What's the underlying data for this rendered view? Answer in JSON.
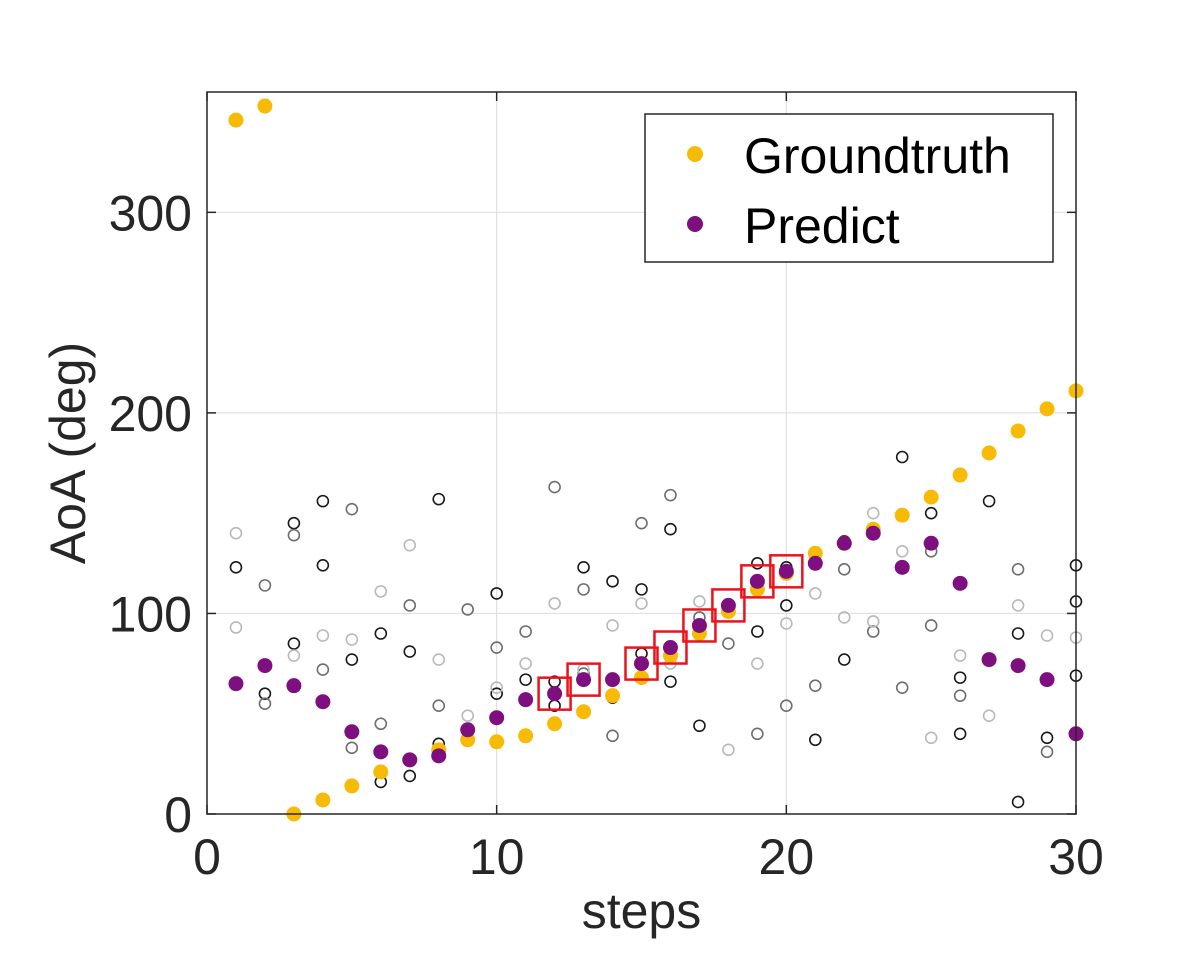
{
  "chart_data": {
    "type": "scatter",
    "title": "",
    "xlabel": "steps",
    "ylabel": "AoA (deg)",
    "xlim": [
      0,
      30
    ],
    "ylim": [
      0,
      360
    ],
    "xticks": [
      0,
      10,
      20,
      30
    ],
    "yticks": [
      0,
      100,
      200,
      300
    ],
    "xtick_labels": [
      "0",
      "10",
      "20",
      "30"
    ],
    "ytick_labels": [
      "0",
      "100",
      "200",
      "300"
    ],
    "grid": true,
    "legend_position": "top-right",
    "colors": {
      "groundtruth": "#f7bb06",
      "predict": "#7e0f7e",
      "candidate_dark": "#1a1a1a",
      "candidate_mid": "#6e6e6e",
      "candidate_light": "#b9b9b9",
      "highlight_box": "#e8141c",
      "grid": "#e0e0e0",
      "axis": "#262626"
    },
    "series": [
      {
        "name": "Groundtruth",
        "marker": "filled-circle",
        "x": [
          1,
          2,
          3,
          4,
          5,
          6,
          7,
          8,
          9,
          10,
          11,
          12,
          13,
          14,
          15,
          16,
          17,
          18,
          19,
          20,
          21,
          22,
          23,
          24,
          25,
          26,
          27,
          28,
          29,
          30
        ],
        "y": [
          346,
          353,
          0,
          7,
          14,
          21,
          27,
          32,
          37,
          36,
          39,
          45,
          51,
          59,
          68,
          79,
          90,
          101,
          112,
          120,
          130,
          135,
          142,
          149,
          158,
          169,
          180,
          191,
          202,
          211
        ]
      },
      {
        "name": "Predict",
        "marker": "filled-circle",
        "x": [
          1,
          2,
          3,
          4,
          5,
          6,
          7,
          8,
          9,
          10,
          11,
          12,
          13,
          14,
          15,
          16,
          17,
          18,
          19,
          20,
          21,
          22,
          23,
          24,
          25,
          26,
          27,
          28,
          29,
          30
        ],
        "y": [
          65,
          74,
          64,
          56,
          41,
          31,
          27,
          29,
          42,
          48,
          57,
          60,
          67,
          67,
          75,
          83,
          94,
          104,
          116,
          121,
          125,
          135,
          140,
          123,
          135,
          115,
          77,
          74,
          67,
          40
        ]
      }
    ],
    "candidates": [
      {
        "shade": "dark",
        "points": [
          [
            1,
            123
          ],
          [
            2,
            60
          ],
          [
            3,
            85
          ],
          [
            3,
            145
          ],
          [
            4,
            124
          ],
          [
            4,
            156
          ],
          [
            5,
            77
          ],
          [
            6,
            16
          ],
          [
            6,
            90
          ],
          [
            7,
            19
          ],
          [
            7,
            81
          ],
          [
            8,
            35
          ],
          [
            8,
            157
          ],
          [
            10,
            60
          ],
          [
            10,
            110
          ],
          [
            11,
            67
          ],
          [
            11,
            39
          ],
          [
            12,
            66
          ],
          [
            12,
            54
          ],
          [
            13,
            67
          ],
          [
            13,
            123
          ],
          [
            14,
            58
          ],
          [
            14,
            116
          ],
          [
            15,
            80
          ],
          [
            15,
            112
          ],
          [
            16,
            66
          ],
          [
            16,
            142
          ],
          [
            17,
            44
          ],
          [
            17,
            93
          ],
          [
            18,
            102
          ],
          [
            19,
            125
          ],
          [
            19,
            91
          ],
          [
            20,
            104
          ],
          [
            20,
            123
          ],
          [
            21,
            129
          ],
          [
            21,
            37
          ],
          [
            22,
            77
          ],
          [
            22,
            136
          ],
          [
            23,
            141
          ],
          [
            24,
            178
          ],
          [
            25,
            150
          ],
          [
            26,
            40
          ],
          [
            26,
            68
          ],
          [
            27,
            156
          ],
          [
            27,
            77
          ],
          [
            28,
            90
          ],
          [
            28,
            6
          ],
          [
            29,
            38
          ],
          [
            30,
            106
          ],
          [
            30,
            69
          ],
          [
            30,
            124
          ]
        ]
      },
      {
        "shade": "mid",
        "points": [
          [
            1,
            65
          ],
          [
            2,
            55
          ],
          [
            2,
            114
          ],
          [
            3,
            139
          ],
          [
            4,
            72
          ],
          [
            5,
            152
          ],
          [
            5,
            33
          ],
          [
            6,
            45
          ],
          [
            7,
            104
          ],
          [
            8,
            54
          ],
          [
            9,
            102
          ],
          [
            9,
            41
          ],
          [
            10,
            83
          ],
          [
            11,
            91
          ],
          [
            12,
            163
          ],
          [
            13,
            112
          ],
          [
            13,
            70
          ],
          [
            14,
            39
          ],
          [
            15,
            145
          ],
          [
            16,
            159
          ],
          [
            17,
            98
          ],
          [
            18,
            85
          ],
          [
            19,
            40
          ],
          [
            20,
            54
          ],
          [
            21,
            64
          ],
          [
            22,
            122
          ],
          [
            23,
            91
          ],
          [
            24,
            63
          ],
          [
            25,
            131
          ],
          [
            25,
            94
          ],
          [
            26,
            59
          ],
          [
            27,
            77
          ],
          [
            28,
            122
          ],
          [
            29,
            31
          ]
        ]
      },
      {
        "shade": "light",
        "points": [
          [
            1,
            140
          ],
          [
            1,
            93
          ],
          [
            3,
            79
          ],
          [
            4,
            89
          ],
          [
            5,
            87
          ],
          [
            6,
            111
          ],
          [
            7,
            134
          ],
          [
            8,
            77
          ],
          [
            9,
            49
          ],
          [
            10,
            63
          ],
          [
            11,
            75
          ],
          [
            12,
            105
          ],
          [
            13,
            72
          ],
          [
            14,
            94
          ],
          [
            15,
            105
          ],
          [
            16,
            75
          ],
          [
            17,
            106
          ],
          [
            18,
            32
          ],
          [
            19,
            75
          ],
          [
            20,
            95
          ],
          [
            21,
            110
          ],
          [
            22,
            98
          ],
          [
            23,
            150
          ],
          [
            23,
            96
          ],
          [
            24,
            131
          ],
          [
            25,
            38
          ],
          [
            26,
            79
          ],
          [
            27,
            49
          ],
          [
            28,
            104
          ],
          [
            29,
            89
          ],
          [
            30,
            88
          ]
        ]
      }
    ],
    "highlight_boxes_x": [
      12,
      13,
      15,
      16,
      17,
      18,
      19,
      20
    ],
    "highlight_boxes_y": [
      60,
      67,
      75,
      83,
      94,
      104,
      116,
      121
    ],
    "legend": [
      {
        "label": "Groundtruth",
        "series": "Groundtruth"
      },
      {
        "label": "Predict",
        "series": "Predict"
      }
    ]
  }
}
